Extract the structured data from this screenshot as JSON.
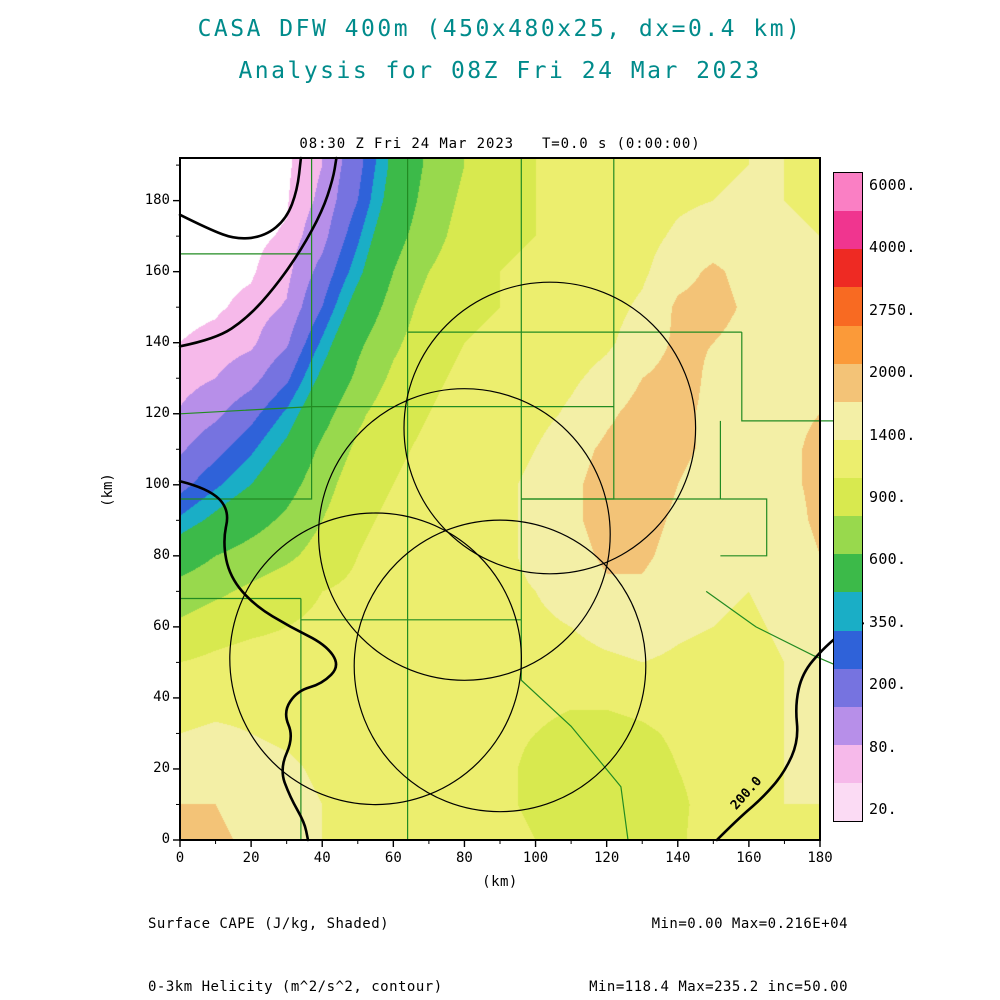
{
  "title": {
    "line1": "CASA DFW 400m (450x480x25, dx=0.4 km)",
    "line2": "Analysis for 08Z Fri 24 Mar 2023",
    "color": "#008b8b"
  },
  "plot": {
    "header": "08:30 Z Fri 24 Mar 2023   T=0.0 s (0:00:00)",
    "x_axis": {
      "label": "(km)",
      "ticks": [
        0,
        20,
        40,
        60,
        80,
        100,
        120,
        140,
        160,
        180
      ],
      "range": [
        0,
        180
      ]
    },
    "y_axis": {
      "label": "(km)",
      "ticks": [
        0,
        20,
        40,
        60,
        80,
        100,
        120,
        140,
        160,
        180
      ],
      "range": [
        0,
        192
      ]
    }
  },
  "footer": {
    "left_line1": "Surface CAPE (J/kg, Shaded)",
    "left_line2": "0-3km Helicity (m^2/s^2, contour)",
    "right_line1": "Min=0.00 Max=0.216E+04",
    "right_line2": "Min=118.4 Max=235.2 inc=50.00"
  },
  "colorbar": {
    "labels": [
      "6000.",
      "4000.",
      "2750.",
      "2000.",
      "1400.",
      "900.",
      "600.",
      "350.",
      "200.",
      "80.",
      "20."
    ],
    "colors_top_to_bottom": [
      "#fa7fc4",
      "#f0358f",
      "#ee2a23",
      "#f86a22",
      "#fb9a39",
      "#f3c377",
      "#f3efa6",
      "#ecee6e",
      "#d8e94f",
      "#98d94d",
      "#3cba49",
      "#1aaec6",
      "#2f62d9",
      "#7673e0",
      "#b78fe9",
      "#f6b9ea",
      "#fbdbf4"
    ]
  },
  "chart_data": {
    "type": "heatmap",
    "field_name": "Surface CAPE (J/kg, Shaded)",
    "overlay_name": "0-3km Helicity (m^2/s^2, contour)",
    "x_range": [
      0,
      180
    ],
    "y_range": [
      0,
      192
    ],
    "x_km": [
      0,
      10,
      20,
      30,
      40,
      50,
      60,
      70,
      80,
      90,
      100,
      110,
      120,
      130,
      140,
      150,
      160,
      170,
      180
    ],
    "y_km_top_to_bottom": [
      190,
      180,
      170,
      160,
      150,
      140,
      130,
      120,
      110,
      100,
      90,
      80,
      70,
      60,
      50,
      40,
      30,
      20,
      10,
      0
    ],
    "values": [
      [
        5,
        5,
        5,
        10,
        80,
        300,
        650,
        950,
        1150,
        1300,
        1400,
        1450,
        1500,
        1550,
        1600,
        1650,
        1700,
        1700,
        1650
      ],
      [
        5,
        5,
        5,
        15,
        100,
        350,
        700,
        1000,
        1200,
        1350,
        1400,
        1450,
        1500,
        1550,
        1650,
        1700,
        1750,
        1700,
        1650
      ],
      [
        5,
        5,
        10,
        25,
        150,
        450,
        800,
        1050,
        1250,
        1350,
        1400,
        1450,
        1500,
        1600,
        1750,
        1850,
        1800,
        1750,
        1700
      ],
      [
        5,
        10,
        15,
        50,
        250,
        550,
        900,
        1150,
        1300,
        1400,
        1450,
        1500,
        1550,
        1650,
        1900,
        2050,
        1900,
        1800,
        1750
      ],
      [
        10,
        15,
        30,
        90,
        350,
        700,
        1000,
        1250,
        1350,
        1400,
        1450,
        1500,
        1600,
        1750,
        2050,
        2100,
        1950,
        1850,
        1800
      ],
      [
        20,
        30,
        60,
        180,
        500,
        850,
        1100,
        1300,
        1400,
        1450,
        1500,
        1550,
        1650,
        1850,
        2050,
        2000,
        1900,
        1850,
        1850
      ],
      [
        40,
        80,
        150,
        320,
        650,
        950,
        1200,
        1350,
        1450,
        1500,
        1550,
        1650,
        1800,
        2000,
        2100,
        1950,
        1900,
        1900,
        1950
      ],
      [
        90,
        170,
        300,
        500,
        800,
        1100,
        1300,
        1400,
        1500,
        1550,
        1600,
        1750,
        1950,
        2100,
        2050,
        1950,
        1900,
        1950,
        2000
      ],
      [
        180,
        300,
        450,
        650,
        950,
        1200,
        1350,
        1450,
        1550,
        1600,
        1700,
        1900,
        2050,
        2150,
        2050,
        1950,
        1900,
        1950,
        2050
      ],
      [
        300,
        450,
        600,
        800,
        1050,
        1300,
        1400,
        1500,
        1600,
        1650,
        1750,
        1950,
        2100,
        2150,
        2000,
        1900,
        1850,
        1950,
        2050
      ],
      [
        500,
        650,
        800,
        950,
        1150,
        1350,
        1450,
        1500,
        1600,
        1650,
        1750,
        1950,
        2100,
        2100,
        1950,
        1850,
        1800,
        1900,
        2050
      ],
      [
        750,
        900,
        1000,
        1100,
        1250,
        1400,
        1500,
        1550,
        1600,
        1650,
        1750,
        1900,
        2050,
        2050,
        1900,
        1800,
        1750,
        1850,
        2000
      ],
      [
        1000,
        1100,
        1200,
        1300,
        1400,
        1450,
        1500,
        1550,
        1600,
        1650,
        1700,
        1800,
        1950,
        1950,
        1850,
        1750,
        1700,
        1800,
        1950
      ],
      [
        1200,
        1300,
        1350,
        1400,
        1450,
        1500,
        1550,
        1550,
        1600,
        1600,
        1650,
        1700,
        1800,
        1850,
        1750,
        1700,
        1650,
        1750,
        1900
      ],
      [
        1400,
        1450,
        1500,
        1500,
        1500,
        1550,
        1550,
        1550,
        1550,
        1600,
        1600,
        1600,
        1650,
        1700,
        1650,
        1600,
        1600,
        1700,
        1850
      ],
      [
        1550,
        1600,
        1600,
        1600,
        1550,
        1550,
        1500,
        1500,
        1500,
        1500,
        1500,
        1450,
        1450,
        1500,
        1550,
        1550,
        1600,
        1700,
        1800
      ],
      [
        1700,
        1750,
        1700,
        1650,
        1600,
        1550,
        1500,
        1500,
        1450,
        1450,
        1400,
        1300,
        1300,
        1350,
        1450,
        1550,
        1600,
        1700,
        1750
      ],
      [
        1850,
        1900,
        1800,
        1750,
        1650,
        1600,
        1550,
        1500,
        1500,
        1450,
        1350,
        1250,
        1200,
        1250,
        1400,
        1500,
        1600,
        1700,
        1750
      ],
      [
        2000,
        2000,
        1900,
        1800,
        1700,
        1600,
        1550,
        1550,
        1500,
        1450,
        1350,
        1200,
        1150,
        1200,
        1350,
        1500,
        1650,
        1700,
        1700
      ],
      [
        2100,
        2050,
        1950,
        1850,
        1700,
        1650,
        1600,
        1550,
        1550,
        1500,
        1400,
        1250,
        1150,
        1200,
        1350,
        1550,
        1650,
        1700,
        1650
      ]
    ],
    "fill_levels": [
      20,
      80,
      200,
      350,
      475,
      600,
      900,
      1150,
      1400,
      1700,
      2000,
      2750
    ],
    "fill_colors": [
      "#ffffff",
      "#f6b9ea",
      "#b78fe9",
      "#7673e0",
      "#2f62d9",
      "#1aaec6",
      "#3cba49",
      "#98d94d",
      "#d8e94f",
      "#ecee6e",
      "#f3efa6",
      "#f3c377",
      "#fb9a39"
    ],
    "stats": {
      "cape_min": 0.0,
      "cape_max": 2160,
      "helicity_min": 118.4,
      "helicity_max": 235.2,
      "helicity_contour_interval": 50
    },
    "range_rings": {
      "radius_km": 41,
      "centers_km": [
        [
          104,
          116
        ],
        [
          80,
          86
        ],
        [
          55,
          51
        ],
        [
          90,
          49
        ]
      ]
    },
    "helicity_contours_km": [
      [
        [
          0,
          176
        ],
        [
          8,
          172
        ],
        [
          16,
          169
        ],
        [
          24,
          170
        ],
        [
          30,
          175
        ],
        [
          33,
          183
        ],
        [
          34,
          192
        ]
      ],
      [
        [
          0,
          139
        ],
        [
          10,
          141
        ],
        [
          19,
          147
        ],
        [
          27,
          156
        ],
        [
          34,
          166
        ],
        [
          40,
          177
        ],
        [
          43,
          186
        ],
        [
          44,
          192
        ]
      ],
      [
        [
          0,
          101
        ],
        [
          8,
          99
        ],
        [
          14,
          93
        ],
        [
          12,
          84
        ],
        [
          14,
          74
        ],
        [
          21,
          66
        ],
        [
          31,
          60
        ],
        [
          41,
          55
        ],
        [
          45,
          49
        ],
        [
          40,
          44
        ],
        [
          33,
          42
        ],
        [
          29,
          36
        ],
        [
          32,
          29
        ],
        [
          28,
          20
        ],
        [
          31,
          12
        ],
        [
          35,
          5
        ],
        [
          36,
          0
        ]
      ],
      [
        [
          151,
          0
        ],
        [
          157,
          6
        ],
        [
          164,
          12
        ],
        [
          170,
          19
        ],
        [
          174,
          28
        ],
        [
          173,
          38
        ],
        [
          175,
          47
        ],
        [
          181,
          54
        ],
        [
          187,
          59
        ],
        [
          192,
          61
        ]
      ]
    ],
    "contour_labels": [
      {
        "text": "200.0",
        "x_km": 155,
        "y_km": 13
      }
    ],
    "county_lines_km": [
      [
        [
          37,
          192
        ],
        [
          37,
          122
        ]
      ],
      [
        [
          0,
          165
        ],
        [
          37,
          165
        ]
      ],
      [
        [
          0,
          120
        ],
        [
          37,
          122
        ],
        [
          64,
          122
        ]
      ],
      [
        [
          64,
          192
        ],
        [
          64,
          122
        ]
      ],
      [
        [
          64,
          143
        ],
        [
          96,
          143
        ]
      ],
      [
        [
          96,
          192
        ],
        [
          96,
          143
        ]
      ],
      [
        [
          96,
          143
        ],
        [
          122,
          143
        ]
      ],
      [
        [
          122,
          192
        ],
        [
          122,
          143
        ]
      ],
      [
        [
          122,
          143
        ],
        [
          158,
          143
        ]
      ],
      [
        [
          158,
          143
        ],
        [
          158,
          118
        ],
        [
          192,
          118
        ]
      ],
      [
        [
          64,
          122
        ],
        [
          96,
          122
        ]
      ],
      [
        [
          96,
          143
        ],
        [
          96,
          96
        ]
      ],
      [
        [
          96,
          122
        ],
        [
          122,
          122
        ]
      ],
      [
        [
          122,
          143
        ],
        [
          122,
          96
        ],
        [
          96,
          96
        ]
      ],
      [
        [
          37,
          122
        ],
        [
          37,
          96
        ],
        [
          0,
          96
        ]
      ],
      [
        [
          64,
          122
        ],
        [
          64,
          62
        ]
      ],
      [
        [
          0,
          68
        ],
        [
          34,
          68
        ]
      ],
      [
        [
          34,
          68
        ],
        [
          34,
          62
        ],
        [
          64,
          62
        ]
      ],
      [
        [
          34,
          62
        ],
        [
          34,
          0
        ]
      ],
      [
        [
          64,
          62
        ],
        [
          64,
          0
        ]
      ],
      [
        [
          64,
          62
        ],
        [
          96,
          62
        ]
      ],
      [
        [
          96,
          96
        ],
        [
          96,
          62
        ]
      ],
      [
        [
          96,
          96
        ],
        [
          152,
          96
        ]
      ],
      [
        [
          152,
          96
        ],
        [
          152,
          118
        ]
      ],
      [
        [
          96,
          62
        ],
        [
          96,
          45
        ],
        [
          110,
          32
        ],
        [
          124,
          15
        ],
        [
          126,
          0
        ]
      ],
      [
        [
          148,
          70
        ],
        [
          162,
          60
        ],
        [
          178,
          52
        ],
        [
          192,
          46
        ]
      ],
      [
        [
          152,
          96
        ],
        [
          165,
          96
        ],
        [
          165,
          80
        ],
        [
          152,
          80
        ]
      ]
    ],
    "style": {
      "county_color": "#228b22",
      "contour_color": "#000000",
      "ring_color": "#000000",
      "frame_color": "#000000"
    }
  }
}
